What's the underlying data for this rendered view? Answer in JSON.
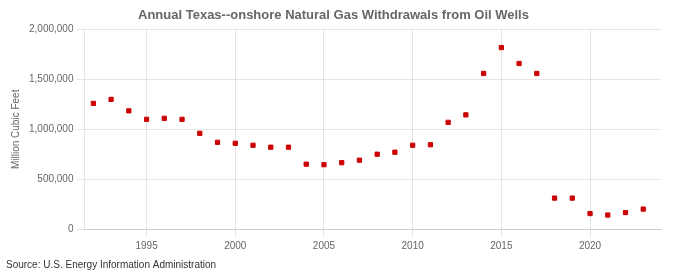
{
  "chart_data": {
    "type": "scatter",
    "title": "Annual Texas--onshore Natural Gas Withdrawals from Oil Wells",
    "ylabel": "Million Cubic Feet",
    "annotation": "Source: U.S. Energy Information Administration",
    "color": "#cc0000",
    "marker": "square",
    "grid": true,
    "xlim": [
      1991.5,
      2024
    ],
    "xticks": [
      1995,
      2000,
      2005,
      2010,
      2015,
      2020
    ],
    "ylim": [
      0,
      2000000
    ],
    "yticks": [
      0,
      {
        "value": 500000,
        "label": "500,000"
      },
      {
        "value": 1000000,
        "label": "1,000,000"
      },
      {
        "value": 1500000,
        "label": "1,500,000"
      },
      {
        "value": 2000000,
        "label": "2,000,000"
      }
    ],
    "x": [
      1992,
      1993,
      1994,
      1995,
      1996,
      1997,
      1998,
      1999,
      2000,
      2001,
      2002,
      2003,
      2004,
      2005,
      2006,
      2007,
      2008,
      2009,
      2010,
      2011,
      2012,
      2013,
      2014,
      2015,
      2016,
      2017,
      2018,
      2019,
      2020,
      2021,
      2022,
      2023
    ],
    "values": [
      1260000,
      1300000,
      1185000,
      1100000,
      1110000,
      1100000,
      960000,
      870000,
      860000,
      840000,
      820000,
      820000,
      650000,
      645000,
      665000,
      690000,
      750000,
      770000,
      840000,
      845000,
      1070000,
      1145000,
      1560000,
      1820000,
      1660000,
      1560000,
      310000,
      310000,
      155000,
      140000,
      165000,
      200000
    ]
  }
}
